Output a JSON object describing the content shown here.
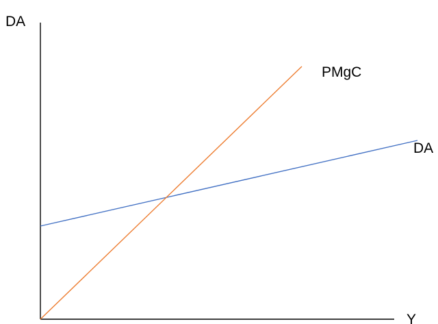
{
  "diagram": {
    "y_axis_label": "DA",
    "x_axis_label": "Y",
    "lines": [
      {
        "name": "PMgC",
        "color": "#ED7D31"
      },
      {
        "name": "DA",
        "color": "#4472C4"
      }
    ],
    "axis_color": "#000000"
  }
}
